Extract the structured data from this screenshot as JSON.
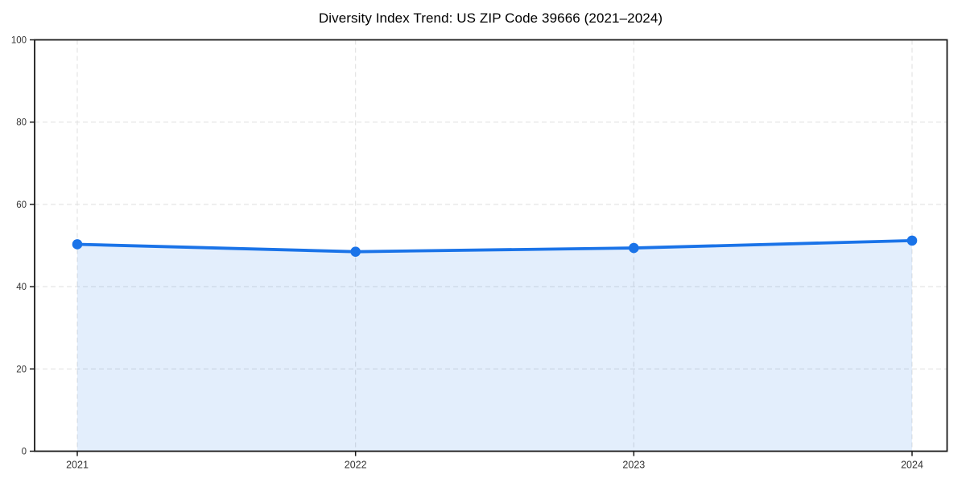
{
  "page": {
    "background": "#ffffff"
  },
  "chart_data": {
    "type": "line",
    "title": "Diversity Index Trend: US ZIP Code 39666 (2021–2024)",
    "categories": [
      "2021",
      "2022",
      "2023",
      "2024"
    ],
    "series": [
      {
        "name": "Diversity Index",
        "values": [
          50.3,
          48.5,
          49.4,
          51.2
        ]
      }
    ],
    "xlabel": "",
    "ylabel": "",
    "ylim": [
      0,
      100
    ],
    "yticks": [
      0,
      20,
      40,
      60,
      80,
      100
    ],
    "grid": true,
    "grid_style": "dashed",
    "legend": "none",
    "area_fill": true,
    "marker": "circle",
    "colors": {
      "line": "#1a73e8",
      "marker": "#1a73e8",
      "area_fill": "rgba(26,115,232,0.12)",
      "gridline": "#e2e2e2",
      "spine": "#1a1a1a",
      "tick_label": "#333333",
      "title": "#000000",
      "background": "#ffffff"
    }
  }
}
